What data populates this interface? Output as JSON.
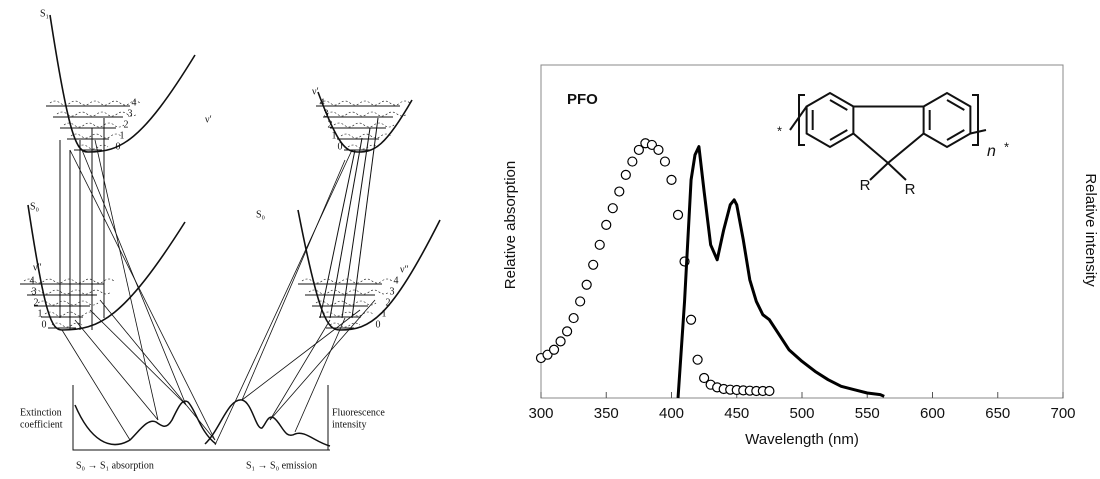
{
  "diagram": {
    "S1_label": "S₁",
    "S0_left": "S₀",
    "S0_right": "S₀",
    "nu1_left": "ν′",
    "nu0_left": "ν″",
    "nu1_right": "ν′",
    "nu0_right": "ν″",
    "wells": [
      {
        "levels": [
          "0",
          "1",
          "2",
          "3",
          "4"
        ]
      },
      {
        "levels": [
          "0",
          "1",
          "2",
          "3",
          "4"
        ]
      },
      {
        "levels": [
          "0",
          "1",
          "2",
          "3",
          "4"
        ]
      },
      {
        "levels": [
          "0",
          "1",
          "2",
          "3",
          "4"
        ]
      }
    ],
    "extinction": [
      "Extinction",
      "coefficient"
    ],
    "fluorescence": [
      "Fluorescence",
      "intensity"
    ],
    "absorption_caption": "S₀ → S₁ absorption",
    "emission_caption": "S₁ → S₀ emission"
  },
  "chart_data": {
    "type": "line",
    "title": "PFO",
    "xlabel": "Wavelength (nm)",
    "ylabel": "Relative absorption",
    "y2label": "Relative intensity",
    "structure_labels": {
      "R1": "R",
      "R2": "R",
      "n": "n",
      "star_left": "*",
      "star_right": "*"
    },
    "xlim": [
      300,
      700
    ],
    "xticks": [
      300,
      350,
      400,
      450,
      500,
      550,
      600,
      650,
      700
    ],
    "ylim": [
      0,
      1
    ],
    "series": [
      {
        "marker": "circle",
        "color": "#000000",
        "x": [
          300,
          305,
          310,
          315,
          320,
          325,
          330,
          335,
          340,
          345,
          350,
          355,
          360,
          365,
          370,
          375,
          380,
          385,
          390,
          395,
          400,
          405,
          410,
          415,
          420,
          425,
          430,
          435,
          440,
          445,
          450,
          455,
          460,
          465,
          470,
          475
        ],
        "values": [
          0.12,
          0.13,
          0.145,
          0.17,
          0.2,
          0.24,
          0.29,
          0.34,
          0.4,
          0.46,
          0.52,
          0.57,
          0.62,
          0.67,
          0.71,
          0.745,
          0.765,
          0.76,
          0.745,
          0.71,
          0.655,
          0.55,
          0.41,
          0.235,
          0.115,
          0.06,
          0.04,
          0.032,
          0.027,
          0.025,
          0.024,
          0.023,
          0.022,
          0.021,
          0.021,
          0.021
        ]
      },
      {
        "marker": "none",
        "color": "#000000",
        "x": [
          405,
          410,
          415,
          418,
          421,
          425,
          430,
          435,
          440,
          445,
          448,
          450,
          455,
          460,
          465,
          470,
          475,
          480,
          490,
          500,
          510,
          520,
          530,
          540,
          550,
          560,
          563
        ],
        "values": [
          0,
          0.29,
          0.655,
          0.73,
          0.755,
          0.62,
          0.46,
          0.415,
          0.505,
          0.58,
          0.595,
          0.58,
          0.475,
          0.355,
          0.29,
          0.25,
          0.235,
          0.205,
          0.145,
          0.11,
          0.08,
          0.055,
          0.035,
          0.025,
          0.015,
          0.01,
          0.005
        ]
      }
    ]
  }
}
